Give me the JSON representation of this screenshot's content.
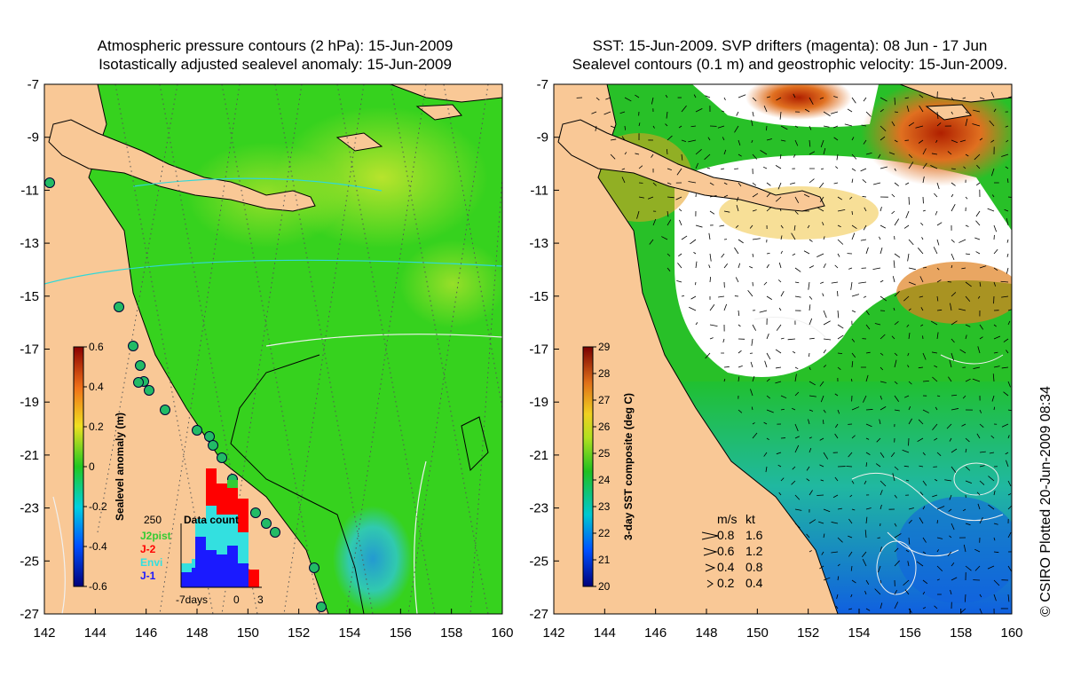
{
  "left_panel": {
    "title_line1": "Atmospheric pressure contours (2 hPa): 15-Jun-2009",
    "title_line2": "Isotastically adjusted sealevel anomaly: 15-Jun-2009",
    "colorbar": {
      "label": "Sealevel anomaly (m)",
      "ticks": [
        "0.6",
        "0.4",
        "0.2",
        "0",
        "-0.2",
        "-0.4",
        "-0.6"
      ],
      "range": [
        -0.6,
        0.6
      ]
    },
    "data_count_inset": {
      "title": "Data count",
      "y_max_label": "250",
      "x_left_label": "-7days",
      "x_mid_label": "0",
      "x_right_label": "3",
      "legend": [
        {
          "name": "J2pist",
          "color": "#33cc33"
        },
        {
          "name": "J-2",
          "color": "#ff0000"
        },
        {
          "name": "Envi",
          "color": "#33e0e0"
        },
        {
          "name": "J-1",
          "color": "#1a1aff"
        }
      ]
    }
  },
  "right_panel": {
    "title_line1": "SST: 15-Jun-2009. SVP drifters (magenta): 08 Jun - 17 Jun",
    "title_line2": "Sealevel contours (0.1 m) and geostrophic velocity: 15-Jun-2009.",
    "colorbar": {
      "label": "3-day SST composite (deg C)",
      "ticks": [
        "29",
        "28",
        "27",
        "26",
        "25",
        "24",
        "23",
        "22",
        "21",
        "20"
      ],
      "range": [
        20,
        29
      ]
    },
    "velocity_legend": {
      "header_ms": "m/s",
      "header_kt": "kt",
      "rows": [
        {
          "ms": "0.8",
          "kt": "1.6"
        },
        {
          "ms": "0.6",
          "kt": "1.2"
        },
        {
          "ms": "0.4",
          "kt": "0.8"
        },
        {
          "ms": "0.2",
          "kt": "0.4"
        }
      ]
    }
  },
  "axes": {
    "x_ticks": [
      "142",
      "144",
      "146",
      "148",
      "150",
      "152",
      "154",
      "156",
      "158",
      "160"
    ],
    "y_ticks": [
      "-7",
      "-9",
      "-11",
      "-13",
      "-15",
      "-17",
      "-19",
      "-21",
      "-23",
      "-25",
      "-27"
    ],
    "lon_range": [
      142,
      160
    ],
    "lat_range": [
      -27,
      -7
    ]
  },
  "credit": "© CSIRO Plotted 20-Jun-2009 08:34",
  "colors": {
    "land": "#f9c896",
    "sea_green": "#36d21e",
    "sst_white": "#ffffff"
  }
}
